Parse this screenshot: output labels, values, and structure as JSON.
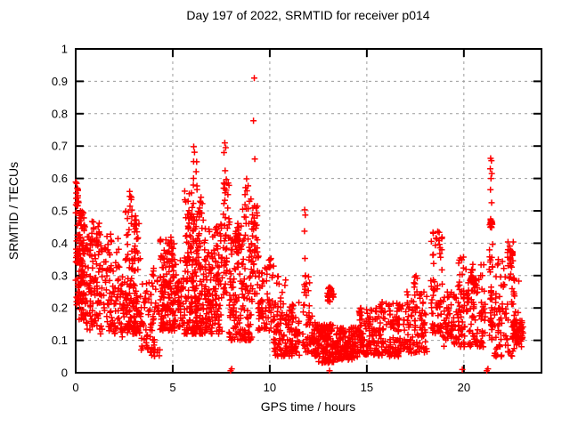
{
  "chart_data": {
    "type": "scatter",
    "title": "Day 197 of 2022, SRMTID for receiver p014",
    "xlabel": "GPS time / hours",
    "ylabel": "SRMTID / TECUs",
    "xlim": [
      0,
      24
    ],
    "ylim": [
      0,
      1
    ],
    "x_ticks": [
      {
        "v": 0,
        "label": "0"
      },
      {
        "v": 5,
        "label": "5"
      },
      {
        "v": 10,
        "label": "10"
      },
      {
        "v": 15,
        "label": "15"
      },
      {
        "v": 20,
        "label": "20"
      }
    ],
    "y_ticks": [
      {
        "v": 0,
        "label": "0"
      },
      {
        "v": 0.1,
        "label": "0.1"
      },
      {
        "v": 0.2,
        "label": "0.2"
      },
      {
        "v": 0.3,
        "label": "0.3"
      },
      {
        "v": 0.4,
        "label": "0.4"
      },
      {
        "v": 0.5,
        "label": "0.5"
      },
      {
        "v": 0.6,
        "label": "0.6"
      },
      {
        "v": 0.7,
        "label": "0.7"
      },
      {
        "v": 0.8,
        "label": "0.8"
      },
      {
        "v": 0.9,
        "label": "0.9"
      },
      {
        "v": 1,
        "label": "1"
      }
    ],
    "grid": "dashed, at every major tick",
    "legend": "none",
    "marker": "plus",
    "marker_color": "#ff0000",
    "grid_color": "#9c9c9c",
    "axis_color": "#000000",
    "background": "#ffffff",
    "seed": 7,
    "clusters_format": "[hourStart, hourEnd, yMin, yMax, count, densityBias(0=blob)]",
    "clusters": [
      [
        0.0,
        0.45,
        0.27,
        0.5,
        90,
        1.2
      ],
      [
        0.0,
        0.15,
        0.5,
        0.59,
        10,
        1
      ],
      [
        0.0,
        0.5,
        0.16,
        0.27,
        35,
        1
      ],
      [
        0.45,
        1.25,
        0.24,
        0.47,
        80,
        1.3
      ],
      [
        0.5,
        1.25,
        0.13,
        0.24,
        35,
        1
      ],
      [
        1.25,
        2.25,
        0.12,
        0.43,
        100,
        1.5
      ],
      [
        2.25,
        2.55,
        0.1,
        0.3,
        25,
        1.2
      ],
      [
        2.55,
        3.35,
        0.12,
        0.5,
        150,
        1.5
      ],
      [
        2.7,
        2.95,
        0.5,
        0.56,
        5,
        1
      ],
      [
        3.35,
        3.85,
        0.07,
        0.28,
        40,
        1.3
      ],
      [
        3.85,
        4.35,
        0.05,
        0.33,
        45,
        1.3
      ],
      [
        4.35,
        5.1,
        0.13,
        0.42,
        150,
        1.4
      ],
      [
        5.1,
        5.6,
        0.14,
        0.35,
        50,
        1.3
      ],
      [
        5.6,
        6.6,
        0.12,
        0.57,
        220,
        1.6
      ],
      [
        6.0,
        6.3,
        0.57,
        0.66,
        6,
        1
      ],
      [
        6.6,
        7.55,
        0.12,
        0.46,
        150,
        1.5
      ],
      [
        7.6,
        7.9,
        0.24,
        0.6,
        40,
        1.2
      ],
      [
        7.9,
        8.6,
        0.1,
        0.47,
        95,
        1.4
      ],
      [
        8.2,
        8.45,
        0.36,
        0.47,
        18,
        0
      ],
      [
        8.6,
        9.1,
        0.1,
        0.6,
        85,
        1.6
      ],
      [
        9.1,
        9.4,
        0.24,
        0.52,
        40,
        1.3
      ],
      [
        9.4,
        10.2,
        0.13,
        0.36,
        75,
        1.4
      ],
      [
        10.2,
        11.55,
        0.05,
        0.22,
        140,
        1.3
      ],
      [
        10.35,
        10.85,
        0.22,
        0.3,
        8,
        1
      ],
      [
        11.7,
        12.05,
        0.06,
        0.3,
        35,
        1.2
      ],
      [
        12.05,
        12.45,
        0.05,
        0.18,
        40,
        1.2
      ],
      [
        12.45,
        13.4,
        0.03,
        0.15,
        140,
        1.2
      ],
      [
        12.95,
        13.3,
        0.21,
        0.28,
        22,
        0
      ],
      [
        13.4,
        14.6,
        0.04,
        0.14,
        140,
        1.2
      ],
      [
        14.6,
        15.6,
        0.05,
        0.2,
        110,
        1.3
      ],
      [
        15.6,
        16.8,
        0.05,
        0.22,
        120,
        1.4
      ],
      [
        16.8,
        18.1,
        0.06,
        0.25,
        110,
        1.4
      ],
      [
        17.35,
        17.6,
        0.22,
        0.31,
        8,
        1
      ],
      [
        18.3,
        18.9,
        0.12,
        0.45,
        70,
        1.4
      ],
      [
        18.9,
        19.7,
        0.08,
        0.25,
        60,
        1.3
      ],
      [
        19.7,
        20.1,
        0.08,
        0.36,
        50,
        1.3
      ],
      [
        20.1,
        21.1,
        0.08,
        0.34,
        95,
        1.5
      ],
      [
        20.3,
        20.65,
        0.25,
        0.33,
        15,
        0
      ],
      [
        21.3,
        21.5,
        0.1,
        0.42,
        35,
        1.2
      ],
      [
        21.33,
        21.48,
        0.44,
        0.48,
        14,
        0
      ],
      [
        21.55,
        22.6,
        0.05,
        0.35,
        85,
        1.4
      ],
      [
        22.25,
        22.55,
        0.3,
        0.44,
        25,
        0
      ],
      [
        22.5,
        23.05,
        0.07,
        0.17,
        65,
        0
      ],
      [
        22.55,
        22.85,
        0.17,
        0.3,
        10,
        1
      ]
    ],
    "points_notable": [
      [
        9.2,
        0.91
      ],
      [
        9.16,
        0.778
      ],
      [
        9.23,
        0.66
      ],
      [
        7.68,
        0.71
      ],
      [
        7.73,
        0.695
      ],
      [
        7.64,
        0.68
      ],
      [
        7.7,
        0.624
      ],
      [
        7.76,
        0.597
      ],
      [
        7.62,
        0.57
      ],
      [
        6.08,
        0.698
      ],
      [
        6.12,
        0.681
      ],
      [
        21.38,
        0.662
      ],
      [
        21.42,
        0.655
      ],
      [
        21.36,
        0.63
      ],
      [
        21.44,
        0.615
      ],
      [
        21.4,
        0.6
      ],
      [
        21.37,
        0.565
      ],
      [
        21.43,
        0.525
      ],
      [
        11.8,
        0.503
      ],
      [
        11.83,
        0.487
      ],
      [
        11.79,
        0.437
      ],
      [
        11.81,
        0.353
      ],
      [
        11.84,
        0.3
      ],
      [
        11.78,
        0.272
      ],
      [
        11.82,
        0.258
      ],
      [
        2.78,
        0.56
      ],
      [
        2.82,
        0.545
      ],
      [
        0.05,
        0.585
      ],
      [
        0.08,
        0.57
      ],
      [
        0.03,
        0.555
      ],
      [
        0.1,
        0.54
      ],
      [
        0.06,
        0.525
      ],
      [
        10.78,
        0.27
      ],
      [
        7.98,
        0.006
      ],
      [
        8.04,
        0.012
      ],
      [
        13.08,
        0.006
      ],
      [
        19.92,
        0.01
      ],
      [
        21.18,
        0.006
      ],
      [
        21.24,
        0.012
      ]
    ]
  }
}
